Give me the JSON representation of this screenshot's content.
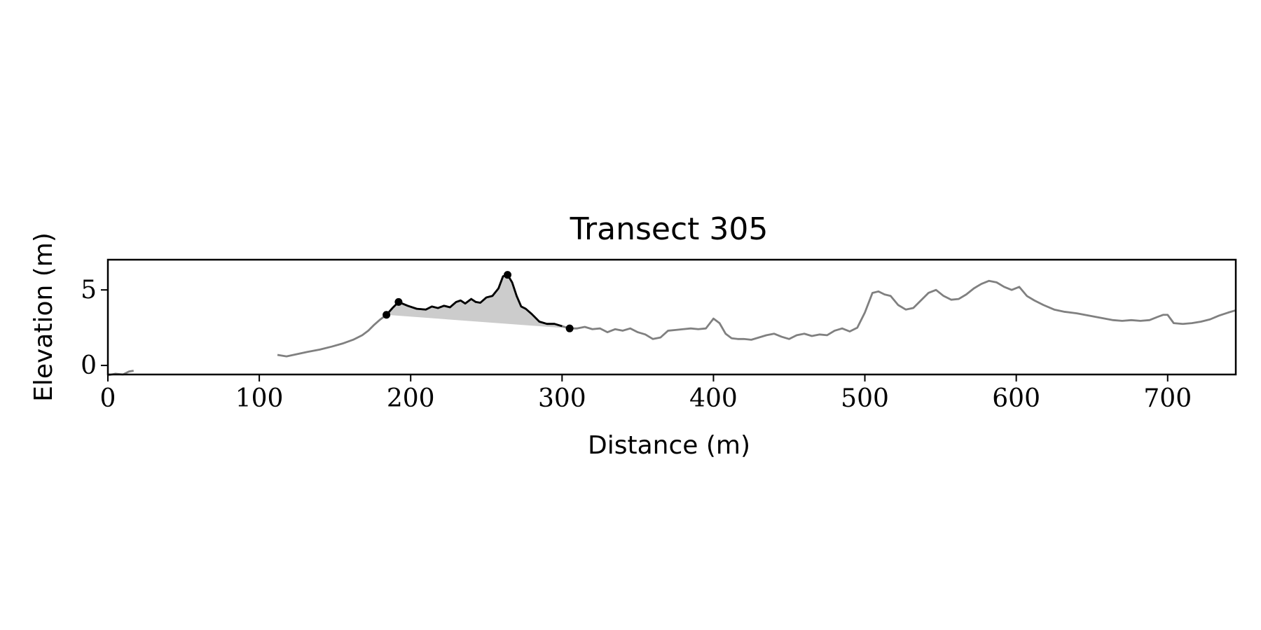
{
  "chart_data": {
    "type": "line",
    "title": "Transect 305",
    "xlabel": "Distance (m)",
    "ylabel": "Elevation (m)",
    "xlim": [
      0,
      745
    ],
    "ylim": [
      -0.6,
      7.0
    ],
    "xticks": [
      0,
      100,
      200,
      300,
      400,
      500,
      600,
      700
    ],
    "yticks": [
      0,
      5
    ],
    "grid": false,
    "colors": {
      "profile": "#808080",
      "dune": "#000000",
      "fill": "#cccccc",
      "markers": "#000000"
    },
    "series": [
      {
        "role": "profile-segment",
        "x": [
          0,
          5,
          10,
          14,
          17
        ],
        "y": [
          -0.65,
          -0.55,
          -0.6,
          -0.4,
          -0.35
        ]
      },
      {
        "role": "profile",
        "x": [
          112,
          118,
          125,
          132,
          140,
          148,
          155,
          162,
          168,
          172,
          176,
          180,
          184,
          188,
          192,
          198,
          204,
          210,
          214,
          218,
          222,
          226,
          230,
          233,
          236,
          240,
          243,
          246,
          250,
          254,
          258,
          261,
          264,
          267,
          270,
          273,
          276,
          280,
          285,
          290,
          295,
          300,
          305,
          310,
          315,
          320,
          325,
          330,
          335,
          340,
          345,
          350,
          355,
          360,
          365,
          370,
          375,
          380,
          385,
          390,
          395,
          400,
          404,
          408,
          412,
          416,
          420,
          425,
          430,
          435,
          440,
          445,
          450,
          455,
          460,
          465,
          470,
          475,
          480,
          485,
          490,
          495,
          500,
          505,
          509,
          513,
          517,
          522,
          527,
          532,
          537,
          542,
          547,
          552,
          557,
          562,
          567,
          572,
          577,
          582,
          587,
          592,
          597,
          602,
          607,
          612,
          618,
          625,
          632,
          640,
          648,
          656,
          664,
          670,
          676,
          682,
          688,
          693,
          697,
          700,
          704,
          710,
          716,
          722,
          728,
          734,
          740,
          745
        ],
        "y": [
          0.7,
          0.6,
          0.75,
          0.9,
          1.05,
          1.25,
          1.45,
          1.7,
          2.0,
          2.3,
          2.7,
          3.05,
          3.35,
          3.8,
          4.2,
          3.95,
          3.75,
          3.7,
          3.9,
          3.8,
          3.95,
          3.85,
          4.2,
          4.3,
          4.1,
          4.4,
          4.2,
          4.15,
          4.5,
          4.6,
          5.1,
          5.9,
          6.0,
          5.5,
          4.6,
          3.9,
          3.75,
          3.4,
          2.9,
          2.75,
          2.75,
          2.6,
          2.45,
          2.45,
          2.55,
          2.4,
          2.45,
          2.2,
          2.4,
          2.3,
          2.45,
          2.2,
          2.05,
          1.75,
          1.85,
          2.3,
          2.35,
          2.4,
          2.45,
          2.4,
          2.45,
          3.1,
          2.8,
          2.1,
          1.8,
          1.75,
          1.75,
          1.7,
          1.85,
          2.0,
          2.1,
          1.9,
          1.75,
          2.0,
          2.1,
          1.95,
          2.05,
          2.0,
          2.3,
          2.45,
          2.25,
          2.5,
          3.5,
          4.8,
          4.9,
          4.7,
          4.6,
          4.0,
          3.7,
          3.8,
          4.3,
          4.8,
          5.0,
          4.6,
          4.35,
          4.4,
          4.7,
          5.1,
          5.4,
          5.6,
          5.5,
          5.2,
          5.0,
          5.2,
          4.6,
          4.3,
          4.0,
          3.7,
          3.55,
          3.45,
          3.3,
          3.15,
          3.0,
          2.95,
          3.0,
          2.95,
          3.0,
          3.2,
          3.35,
          3.35,
          2.8,
          2.75,
          2.8,
          2.9,
          3.05,
          3.3,
          3.5,
          3.65
        ]
      },
      {
        "role": "dune",
        "x": [
          184,
          188,
          192,
          198,
          204,
          210,
          214,
          218,
          222,
          226,
          230,
          233,
          236,
          240,
          243,
          246,
          250,
          254,
          258,
          261,
          264,
          267,
          270,
          273,
          276,
          280,
          285,
          290,
          295,
          300
        ],
        "y": [
          3.35,
          3.8,
          4.2,
          3.95,
          3.75,
          3.7,
          3.9,
          3.8,
          3.95,
          3.85,
          4.2,
          4.3,
          4.1,
          4.4,
          4.2,
          4.15,
          4.5,
          4.6,
          5.1,
          5.9,
          6.0,
          5.5,
          4.6,
          3.9,
          3.75,
          3.4,
          2.9,
          2.75,
          2.75,
          2.6
        ]
      }
    ],
    "fill_baseline": {
      "x": [
        184,
        305
      ],
      "y": [
        3.35,
        2.45
      ]
    },
    "markers": {
      "x": [
        184,
        192,
        264,
        305
      ],
      "y": [
        3.35,
        4.2,
        6.0,
        2.45
      ]
    }
  }
}
